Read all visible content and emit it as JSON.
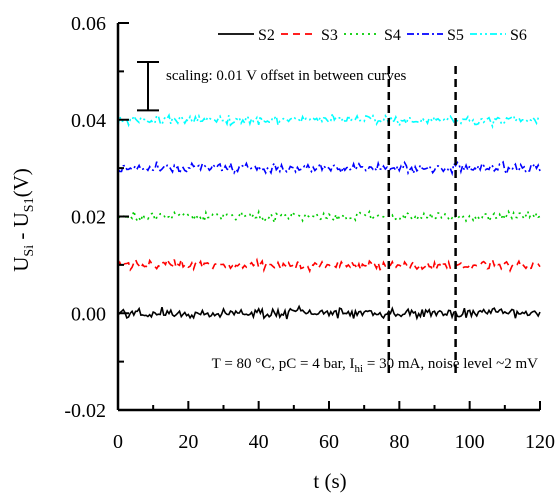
{
  "chart_data": {
    "type": "line",
    "title": "",
    "xlabel": "t (s)",
    "ylabel": {
      "main": "U",
      "sub1": "Si",
      "mid": " - U",
      "sub2": "S1",
      "unit": "(V)"
    },
    "xlim": [
      0,
      120
    ],
    "ylim": [
      -0.02,
      0.06
    ],
    "x_ticks": [
      0,
      20,
      40,
      60,
      80,
      100,
      120
    ],
    "x_tick_labels": [
      "0",
      "20",
      "40",
      "60",
      "80",
      "100",
      "120"
    ],
    "y_ticks": [
      -0.02,
      0.0,
      0.02,
      0.04,
      0.06
    ],
    "y_tick_labels": [
      "-0.02",
      "0.00",
      "0.02",
      "0.04",
      "0.06"
    ],
    "grid": false,
    "legend_position": "top-right",
    "series": [
      {
        "name": "S2",
        "color": "#000000",
        "dash": "solid",
        "offset": 0.0,
        "noise_level": 0.002
      },
      {
        "name": "S3",
        "color": "#ff0000",
        "dash": "dashed",
        "offset": 0.01,
        "noise_level": 0.002
      },
      {
        "name": "S4",
        "color": "#00cc00",
        "dash": "dotted",
        "offset": 0.02,
        "noise_level": 0.002
      },
      {
        "name": "S5",
        "color": "#0000ff",
        "dash": "dash-dot",
        "offset": 0.03,
        "noise_level": 0.002
      },
      {
        "name": "S6",
        "color": "#00ffff",
        "dash": "dash-dot-dot",
        "offset": 0.04,
        "noise_level": 0.002
      }
    ],
    "vertical_markers": [
      77,
      96
    ],
    "scale_bar": {
      "value": 0.01,
      "label": "scaling: 0.01 V offset in between curves"
    },
    "annotation": {
      "pre": "T = 80 °C, pC = 4 bar, I",
      "sub": "hi",
      "post": " = 30 mA, noise level ~2 mV"
    }
  }
}
